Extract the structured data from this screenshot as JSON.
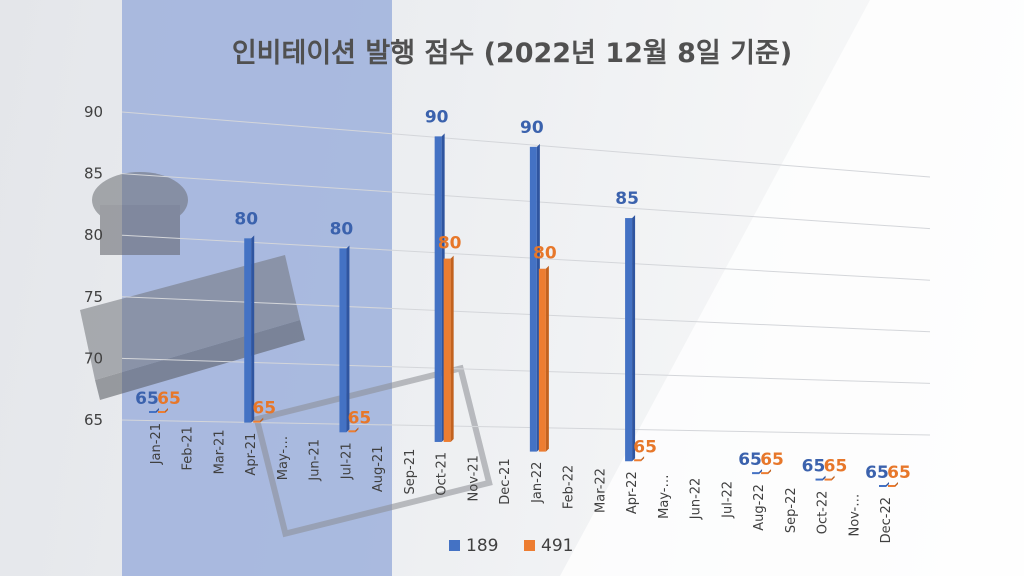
{
  "chart_data": {
    "type": "bar",
    "title": "인비테이션 발행 점수 (2022년 12월 8일 기준)",
    "categories": [
      "Jan-21",
      "Feb-21",
      "Mar-21",
      "Apr-21",
      "May-…",
      "Jun-21",
      "Jul-21",
      "Aug-21",
      "Sep-21",
      "Oct-21",
      "Nov-21",
      "Dec-21",
      "Jan-22",
      "Feb-22",
      "Mar-22",
      "Apr-22",
      "May-…",
      "Jun-22",
      "Jul-22",
      "Aug-22",
      "Sep-22",
      "Oct-22",
      "Nov-…",
      "Dec-22"
    ],
    "series": [
      {
        "name": "189",
        "color": "#4472c4",
        "values": [
          65,
          null,
          null,
          80,
          null,
          null,
          80,
          null,
          null,
          90,
          null,
          null,
          90,
          null,
          null,
          85,
          null,
          null,
          null,
          65,
          null,
          65,
          null,
          65
        ]
      },
      {
        "name": "491",
        "color": "#ed7d31",
        "values": [
          65,
          null,
          null,
          65,
          null,
          null,
          65,
          null,
          null,
          80,
          null,
          null,
          80,
          null,
          null,
          65,
          null,
          null,
          null,
          65,
          null,
          65,
          null,
          65
        ]
      }
    ],
    "y_ticks": [
      65,
      70,
      75,
      80,
      85,
      90
    ],
    "ylim": [
      65,
      90
    ],
    "legend_position": "bottom",
    "grid": true
  }
}
